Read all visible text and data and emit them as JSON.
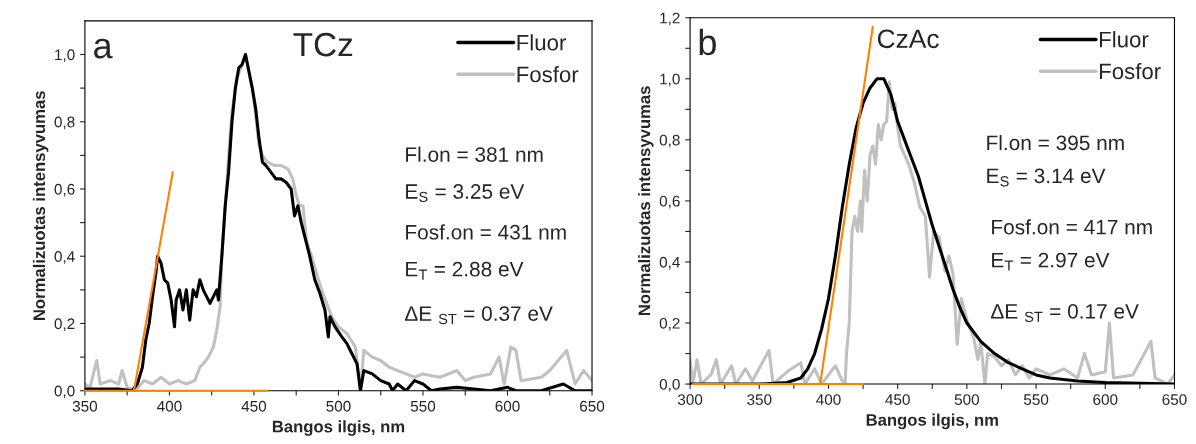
{
  "chart_data": [
    {
      "type": "line",
      "title": "TCz",
      "xlabel": "Bangos ilgis, nm",
      "ylabel": "Normalizuotas intensyvumas",
      "legend": "top right",
      "annotations": [
        "a",
        "Fl.on = 381 nm",
        "E$_{S}$ = 3.25 eV",
        "Fosf.on = 431 nm",
        "E$_{T}$ = 2.88 eV",
        "ΔE $_{ST}$ = 0.37 eV"
      ],
      "xlim": [
        350,
        650
      ],
      "ylim": [
        0,
        1.1
      ],
      "xticks": [
        350,
        {
          "value": 375,
          "label": null
        },
        400,
        {
          "value": 425,
          "label": null
        },
        450,
        {
          "value": 475,
          "label": null
        },
        500,
        {
          "value": 525,
          "label": null
        },
        550,
        {
          "value": 575,
          "label": null
        },
        600,
        {
          "value": 625,
          "label": null
        },
        650
      ],
      "yticks": [
        {
          "value": 0,
          "label": "0,0"
        },
        {
          "value": 0.1,
          "label": null
        },
        {
          "value": 0.2,
          "label": "0,2"
        },
        {
          "value": 0.3,
          "label": null
        },
        {
          "value": 0.4,
          "label": "0,4"
        },
        {
          "value": 0.5,
          "label": null
        },
        {
          "value": 0.6,
          "label": "0,6"
        },
        {
          "value": 0.7,
          "label": null
        },
        {
          "value": 0.8,
          "label": "0,8"
        },
        {
          "value": 0.9,
          "label": null
        },
        {
          "value": 1.0,
          "label": "1,0"
        }
      ],
      "series": [
        {
          "name": "Fosfor",
          "color": "#c0c0c0",
          "x": [
            350,
            353,
            357,
            359,
            365,
            370,
            372,
            375,
            380,
            385,
            390,
            395,
            400,
            405,
            410,
            415,
            418,
            420,
            423,
            426,
            428,
            430,
            431,
            433,
            435,
            437,
            440,
            443,
            445,
            447,
            449,
            451,
            453,
            455,
            458,
            462,
            466,
            470,
            473,
            475,
            477,
            479,
            481,
            484,
            487,
            490,
            493,
            496,
            500,
            505,
            510,
            513,
            515,
            520,
            525,
            530,
            535,
            540,
            545,
            550,
            560,
            570,
            575,
            580,
            590,
            595,
            598,
            602,
            605,
            608,
            620,
            625,
            635,
            640,
            645,
            650
          ],
          "values": [
            0.02,
            0.01,
            0.09,
            0.02,
            0.03,
            0.02,
            0.06,
            0.01,
            0.0,
            0.03,
            0.02,
            0.04,
            0.02,
            0.03,
            0.02,
            0.03,
            0.07,
            0.08,
            0.1,
            0.13,
            0.18,
            0.25,
            0.4,
            0.55,
            0.7,
            0.83,
            0.93,
            0.97,
            1.0,
            0.95,
            0.9,
            0.82,
            0.73,
            0.7,
            0.68,
            0.67,
            0.67,
            0.66,
            0.63,
            0.58,
            0.55,
            0.55,
            0.45,
            0.4,
            0.35,
            0.3,
            0.26,
            0.22,
            0.19,
            0.17,
            0.13,
            0.0,
            0.12,
            0.1,
            0.09,
            0.07,
            0.06,
            0.05,
            0.04,
            0.05,
            0.04,
            0.06,
            0.03,
            0.04,
            0.05,
            0.1,
            0.02,
            0.13,
            0.12,
            0.03,
            0.04,
            0.06,
            0.12,
            0.02,
            0.06,
            0.03
          ]
        },
        {
          "name": "Fluor",
          "color": "#000000",
          "x": [
            350,
            360,
            370,
            378,
            381,
            384,
            386,
            388,
            390,
            392,
            393,
            395,
            397,
            399,
            401,
            403,
            404,
            406,
            408,
            410,
            412,
            414,
            416,
            418,
            420,
            422,
            424,
            426,
            428,
            429,
            431,
            433,
            435,
            437,
            439,
            441,
            443,
            445,
            447,
            449,
            451,
            453,
            455,
            457,
            460,
            463,
            466,
            469,
            472,
            474,
            476,
            478,
            480,
            483,
            486,
            489,
            492,
            494,
            495,
            498,
            502,
            505,
            508,
            511,
            513,
            515,
            520,
            525,
            530,
            532,
            535,
            540,
            545,
            550,
            555,
            560,
            570,
            580,
            590,
            600,
            605,
            620,
            633,
            640,
            650
          ],
          "values": [
            0.005,
            0.005,
            0.005,
            0.0,
            0.02,
            0.07,
            0.15,
            0.2,
            0.28,
            0.35,
            0.4,
            0.38,
            0.33,
            0.32,
            0.27,
            0.19,
            0.27,
            0.3,
            0.24,
            0.3,
            0.21,
            0.3,
            0.28,
            0.33,
            0.3,
            0.28,
            0.26,
            0.28,
            0.3,
            0.27,
            0.4,
            0.55,
            0.65,
            0.8,
            0.9,
            0.96,
            0.97,
            1.0,
            0.95,
            0.9,
            0.84,
            0.75,
            0.68,
            0.67,
            0.65,
            0.63,
            0.63,
            0.62,
            0.6,
            0.52,
            0.55,
            0.5,
            0.46,
            0.4,
            0.33,
            0.29,
            0.24,
            0.16,
            0.22,
            0.19,
            0.16,
            0.14,
            0.11,
            0.08,
            0.0,
            0.06,
            0.05,
            0.03,
            0.02,
            0.0,
            0.02,
            0.0,
            0.03,
            0.02,
            0.0,
            0.005,
            0.01,
            0.005,
            0.0,
            0.01,
            0.0,
            0.0,
            0.02,
            0.0,
            0.0
          ]
        },
        {
          "color": "#ff8000",
          "x": [
            379,
            402
          ],
          "values": [
            0,
            0.65
          ]
        },
        {
          "color": "#ff8000",
          "x": [
            350,
            458
          ],
          "values": [
            0,
            0
          ]
        }
      ]
    },
    {
      "type": "line",
      "title": "CzAc",
      "xlabel": "Bangos ilgis, nm",
      "ylabel": "Normalizuotas intensyvumas",
      "legend": "top right",
      "annotations": [
        "b",
        "Fl.on = 395 nm",
        "E$_{S}$ = 3.14 eV",
        "Fosf.on = 417 nm",
        "E$_{T}$ = 2.97 eV",
        "ΔE $_{ST}$ = 0.17 eV"
      ],
      "xlim": [
        300,
        650
      ],
      "ylim": [
        0,
        1.2
      ],
      "xticks": [
        300,
        {
          "value": 325,
          "label": null
        },
        350,
        {
          "value": 375,
          "label": null
        },
        400,
        {
          "value": 425,
          "label": null
        },
        450,
        {
          "value": 475,
          "label": null
        },
        500,
        {
          "value": 525,
          "label": null
        },
        550,
        {
          "value": 575,
          "label": null
        },
        600,
        {
          "value": 625,
          "label": null
        },
        650
      ],
      "yticks": [
        {
          "value": 0,
          "label": "0,0"
        },
        {
          "value": 0.1,
          "label": null
        },
        {
          "value": 0.2,
          "label": "0,2"
        },
        {
          "value": 0.3,
          "label": null
        },
        {
          "value": 0.4,
          "label": "0,4"
        },
        {
          "value": 0.5,
          "label": null
        },
        {
          "value": 0.6,
          "label": "0,6"
        },
        {
          "value": 0.7,
          "label": null
        },
        {
          "value": 0.8,
          "label": "0,8"
        },
        {
          "value": 0.9,
          "label": null
        },
        {
          "value": 1.0,
          "label": "1,0"
        },
        {
          "value": 1.1,
          "label": null
        },
        {
          "value": 1.2,
          "label": "1,2"
        }
      ],
      "series": [
        {
          "name": "Fosfor",
          "color": "#c0c0c0",
          "x": [
            300,
            302,
            305,
            308,
            315,
            319,
            322,
            330,
            333,
            340,
            345,
            357,
            360,
            370,
            380,
            383,
            390,
            395,
            405,
            410,
            412,
            413,
            415,
            417,
            419,
            421,
            423,
            424,
            426,
            428,
            430,
            432,
            434,
            436,
            438,
            440,
            442,
            444,
            446,
            448,
            450,
            452,
            455,
            458,
            462,
            466,
            470,
            473,
            476,
            480,
            484,
            487,
            490,
            493,
            496,
            500,
            505,
            508,
            510,
            513,
            515,
            520,
            525,
            530,
            535,
            540,
            545,
            550,
            560,
            570,
            580,
            585,
            590,
            600,
            603,
            606,
            620,
            633,
            636,
            645,
            650
          ],
          "values": [
            0.08,
            0.0,
            0.08,
            0.0,
            0.03,
            0.08,
            0.0,
            0.06,
            0.0,
            0.05,
            0.01,
            0.11,
            0.0,
            0.04,
            0.07,
            0.0,
            0.05,
            0.0,
            0.06,
            0.01,
            0.0,
            0.1,
            0.2,
            0.5,
            0.55,
            0.5,
            0.6,
            0.5,
            0.7,
            0.6,
            0.75,
            0.78,
            0.72,
            0.85,
            0.8,
            0.85,
            0.86,
            0.99,
            0.9,
            0.92,
            0.84,
            0.78,
            0.75,
            0.72,
            0.66,
            0.58,
            0.55,
            0.35,
            0.5,
            0.48,
            0.37,
            0.42,
            0.36,
            0.13,
            0.28,
            0.21,
            0.15,
            0.08,
            0.14,
            0.0,
            0.1,
            0.09,
            0.06,
            0.08,
            0.03,
            0.06,
            0.02,
            0.05,
            0.03,
            0.05,
            0.02,
            0.1,
            0.03,
            0.04,
            0.2,
            0.02,
            0.03,
            0.14,
            0.02,
            0.0,
            0.03
          ]
        },
        {
          "name": "Fluor",
          "color": "#000000",
          "x": [
            300,
            350,
            370,
            380,
            385,
            390,
            395,
            400,
            405,
            410,
            415,
            420,
            425,
            430,
            435,
            440,
            445,
            450,
            455,
            460,
            465,
            470,
            475,
            480,
            485,
            490,
            495,
            500,
            510,
            520,
            530,
            540,
            550,
            560,
            580,
            600,
            650
          ],
          "values": [
            0.0,
            0.0,
            0.005,
            0.02,
            0.05,
            0.1,
            0.18,
            0.28,
            0.42,
            0.58,
            0.72,
            0.84,
            0.92,
            0.97,
            1.0,
            1.0,
            0.95,
            0.86,
            0.8,
            0.74,
            0.68,
            0.6,
            0.52,
            0.45,
            0.38,
            0.31,
            0.25,
            0.2,
            0.14,
            0.1,
            0.07,
            0.05,
            0.03,
            0.02,
            0.01,
            0.005,
            0.0
          ]
        },
        {
          "color": "#ff8000",
          "x": [
            394,
            432
          ],
          "values": [
            0,
            1.17
          ]
        },
        {
          "color": "#ff8000",
          "x": [
            302,
            425
          ],
          "values": [
            0,
            0
          ]
        }
      ]
    }
  ]
}
